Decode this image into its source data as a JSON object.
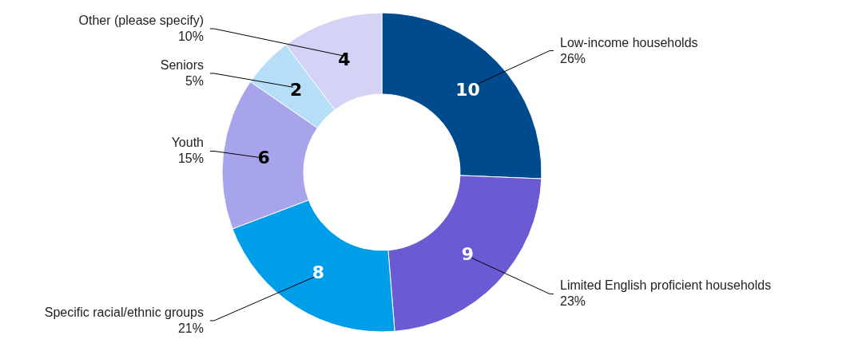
{
  "chart_data": {
    "type": "donut",
    "categories": [
      "Low-income households",
      "Limited English proficient households",
      "Specific racial/ethnic groups",
      "Youth",
      "Seniors",
      "Other (please specify)"
    ],
    "values": [
      10,
      9,
      8,
      6,
      2,
      4
    ],
    "colors": [
      "#004b8d",
      "#6a5ad4",
      "#009ee8",
      "#a8a4ec",
      "#b6def7",
      "#d4d2f5"
    ],
    "annotations": [
      "26%",
      "23%",
      "21%",
      "15%",
      "5%",
      "10%"
    ],
    "data_labels": true
  }
}
